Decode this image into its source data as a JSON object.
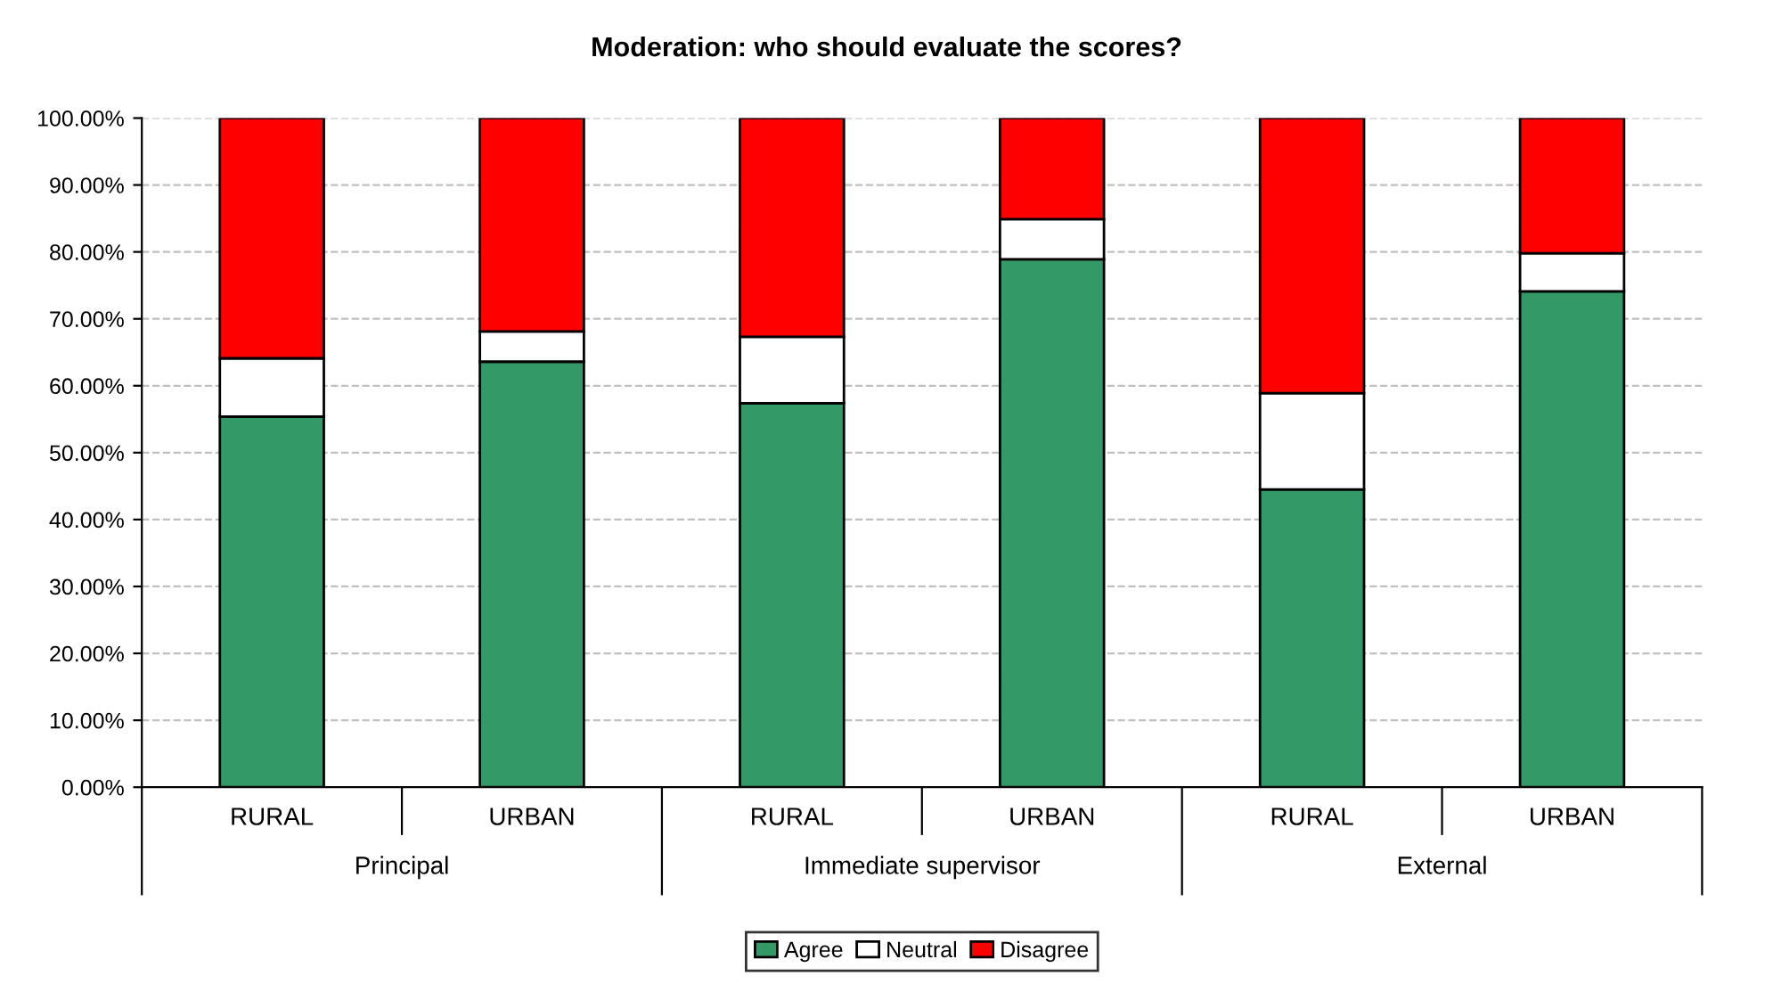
{
  "chart_data": {
    "type": "bar",
    "title": "Moderation: who should evaluate the scores?",
    "stacked": true,
    "categories": [
      "RURAL",
      "URBAN",
      "RURAL",
      "URBAN",
      "RURAL",
      "URBAN"
    ],
    "annotations": [
      "Principal",
      "Immediate supervisor",
      "External"
    ],
    "series": [
      {
        "name": "Agree",
        "color": "#339966",
        "values": [
          55.4,
          63.6,
          57.4,
          78.9,
          44.5,
          74.1
        ]
      },
      {
        "name": "Neutral",
        "color": "#ffffff",
        "values": [
          8.7,
          4.5,
          9.9,
          6.0,
          14.4,
          5.7
        ]
      },
      {
        "name": "Disagree",
        "color": "#ff0000",
        "values": [
          35.9,
          31.9,
          32.7,
          15.1,
          41.1,
          20.2
        ]
      }
    ],
    "ylim": [
      0,
      100
    ],
    "yticks": [
      {
        "value": 0,
        "label": "0.00%"
      },
      {
        "value": 10,
        "label": "10.00%"
      },
      {
        "value": 20,
        "label": "20.00%"
      },
      {
        "value": 30,
        "label": "30.00%"
      },
      {
        "value": 40,
        "label": "40.00%"
      },
      {
        "value": 50,
        "label": "50.00%"
      },
      {
        "value": 60,
        "label": "60.00%"
      },
      {
        "value": 70,
        "label": "70.00%"
      },
      {
        "value": 80,
        "label": "80.00%"
      },
      {
        "value": 90,
        "label": "90.00%"
      },
      {
        "value": 100,
        "label": "100.00%"
      }
    ],
    "grid": "y",
    "legend": "bottom"
  }
}
